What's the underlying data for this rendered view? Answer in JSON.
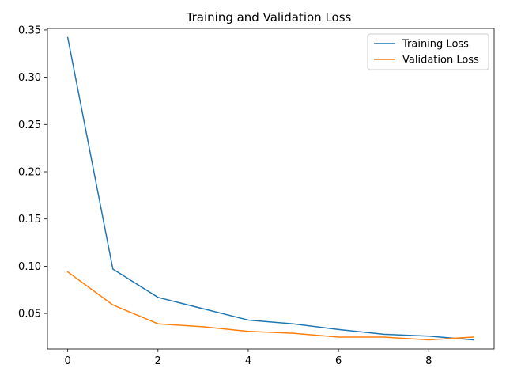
{
  "chart_data": {
    "type": "line",
    "title": "Training and Validation Loss",
    "xlabel": "",
    "ylabel": "",
    "x": [
      0,
      1,
      2,
      3,
      4,
      5,
      6,
      7,
      8,
      9
    ],
    "series": [
      {
        "name": "Training Loss",
        "color": "#1f77b4",
        "values": [
          0.342,
          0.097,
          0.067,
          0.055,
          0.043,
          0.039,
          0.033,
          0.028,
          0.026,
          0.022
        ]
      },
      {
        "name": "Validation Loss",
        "color": "#ff7f0e",
        "values": [
          0.094,
          0.059,
          0.039,
          0.036,
          0.031,
          0.029,
          0.025,
          0.025,
          0.022,
          0.025
        ]
      }
    ],
    "xlim": [
      -0.45,
      9.45
    ],
    "ylim": [
      0.0124,
      0.3516
    ],
    "xticks": [
      0,
      2,
      4,
      6,
      8
    ],
    "xtick_labels": [
      "0",
      "2",
      "4",
      "6",
      "8"
    ],
    "yticks": [
      0.05,
      0.1,
      0.15,
      0.2,
      0.25,
      0.3,
      0.35
    ],
    "ytick_labels": [
      "0.05",
      "0.10",
      "0.15",
      "0.20",
      "0.25",
      "0.30",
      "0.35"
    ],
    "grid": false,
    "legend_position": "top-right"
  }
}
